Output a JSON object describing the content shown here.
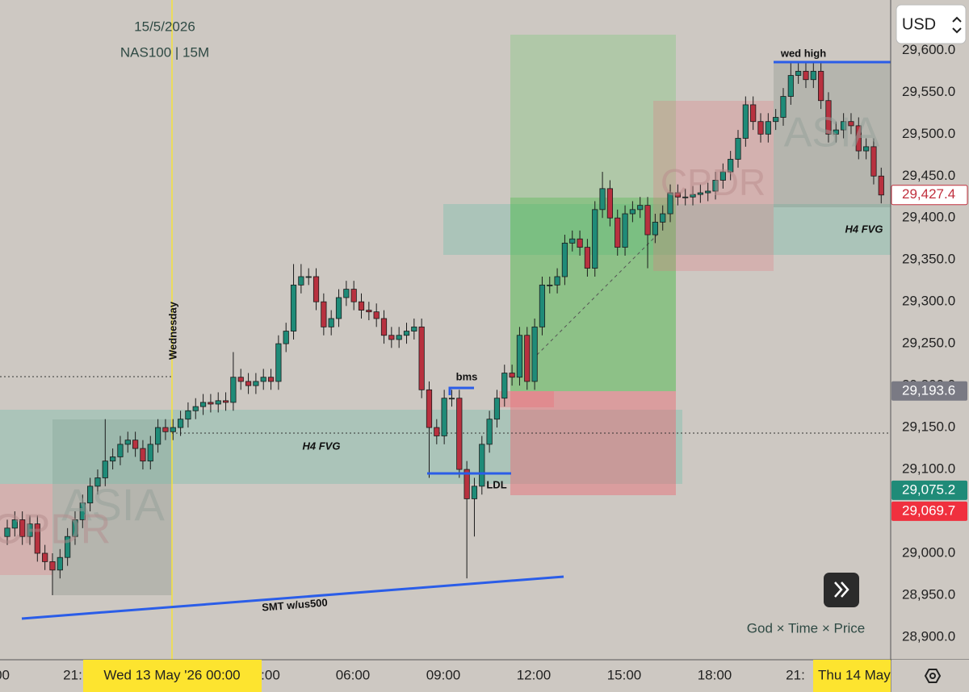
{
  "chart_data": {
    "type": "candlestick",
    "title": "NAS100 | 15M",
    "subtitle": "15/5/2026",
    "categories": [
      "18:30",
      "18:45",
      "19:00",
      "19:15",
      "19:30",
      "19:45",
      "20:00",
      "20:15",
      "20:30",
      "20:45",
      "21:00",
      "21:15",
      "21:30",
      "21:45",
      "22:00",
      "22:15",
      "22:30",
      "22:45",
      "23:00",
      "23:15",
      "23:30",
      "23:45",
      "00:00",
      "00:15",
      "00:30",
      "00:45",
      "01:00",
      "01:15",
      "01:30",
      "01:45",
      "02:00",
      "02:15",
      "02:30",
      "02:45",
      "03:00",
      "03:15",
      "03:30",
      "03:45",
      "04:00",
      "04:15",
      "04:30",
      "04:45",
      "05:00",
      "05:15",
      "05:30",
      "05:45",
      "06:00",
      "06:15",
      "06:30",
      "06:45",
      "07:00",
      "07:15",
      "07:30",
      "07:45",
      "08:00",
      "08:15",
      "08:30",
      "08:45",
      "09:00",
      "09:15",
      "09:30",
      "09:45",
      "10:00",
      "10:15",
      "10:30",
      "10:45",
      "11:00",
      "11:15",
      "11:30",
      "11:45",
      "12:00",
      "12:15",
      "12:30",
      "12:45",
      "13:00",
      "13:15",
      "13:30",
      "13:45",
      "14:00",
      "14:15",
      "14:30",
      "14:45",
      "15:00",
      "15:15",
      "15:30",
      "15:45",
      "16:00",
      "16:15",
      "16:30",
      "16:45",
      "17:00",
      "17:15",
      "17:30",
      "17:45",
      "18:00",
      "18:15",
      "18:30",
      "18:45",
      "19:00",
      "19:15",
      "19:30",
      "19:45",
      "20:00",
      "20:15",
      "20:30",
      "20:45",
      "21:00",
      "21:15",
      "21:30",
      "21:45",
      "22:00",
      "22:15",
      "22:30",
      "22:45",
      "23:00",
      "23:15",
      "23:30"
    ],
    "open": [
      29020,
      29030,
      29040,
      29020,
      29035,
      29000,
      28990,
      28980,
      28995,
      29020,
      29040,
      29060,
      29080,
      29090,
      29110,
      29115,
      29130,
      29135,
      29125,
      29110,
      29130,
      29150,
      29145,
      29150,
      29160,
      29170,
      29175,
      29180,
      29178,
      29182,
      29180,
      29210,
      29205,
      29200,
      29205,
      29210,
      29205,
      29250,
      29265,
      29320,
      29330,
      29330,
      29300,
      29270,
      29280,
      29305,
      29315,
      29300,
      29290,
      29288,
      29280,
      29260,
      29255,
      29260,
      29265,
      29270,
      29195,
      29150,
      29140,
      29185,
      29185,
      29100,
      29065,
      29080,
      29130,
      29160,
      29185,
      29215,
      29210,
      29260,
      29205,
      29270,
      29320,
      29320,
      29330,
      29370,
      29375,
      29365,
      29340,
      29410,
      29435,
      29400,
      29365,
      29405,
      29410,
      29415,
      29380,
      29395,
      29405,
      29430,
      29425,
      29425,
      29428,
      29430,
      29432,
      29445,
      29455,
      29470,
      29495,
      29535,
      29515,
      29500,
      29515,
      29520,
      29545,
      29570,
      29575,
      29565,
      29575,
      29540,
      29500,
      29505,
      29515,
      29510,
      29480,
      29485,
      29450
    ],
    "high": [
      29040,
      29050,
      29050,
      29045,
      29045,
      29010,
      29000,
      29005,
      29030,
      29050,
      29070,
      29090,
      29100,
      29160,
      29125,
      29140,
      29145,
      29145,
      29135,
      29140,
      29160,
      29160,
      29160,
      29170,
      29180,
      29185,
      29190,
      29190,
      29192,
      29192,
      29240,
      29220,
      29215,
      29215,
      29220,
      29220,
      29260,
      29275,
      29345,
      29345,
      29340,
      29340,
      29310,
      29290,
      29315,
      29325,
      29325,
      29310,
      29300,
      29298,
      29290,
      29270,
      29270,
      29275,
      29280,
      29280,
      29205,
      29160,
      29195,
      29195,
      29195,
      29110,
      29090,
      29140,
      29170,
      29195,
      29225,
      29225,
      29270,
      29270,
      29280,
      29330,
      29330,
      29340,
      29380,
      29385,
      29385,
      29375,
      29420,
      29455,
      29445,
      29410,
      29415,
      29420,
      29425,
      29425,
      29405,
      29415,
      29440,
      29440,
      29435,
      29438,
      29440,
      29442,
      29455,
      29465,
      29480,
      29505,
      29545,
      29545,
      29525,
      29525,
      29530,
      29555,
      29585,
      29585,
      29585,
      29585,
      29585,
      29550,
      29515,
      29525,
      29525,
      29520,
      29495,
      29495,
      29460
    ],
    "low": [
      29010,
      29020,
      29010,
      29010,
      28990,
      28980,
      28950,
      28970,
      28985,
      29010,
      29030,
      29050,
      29070,
      29080,
      29100,
      29105,
      29120,
      29115,
      29100,
      29100,
      29120,
      29135,
      29135,
      29140,
      29150,
      29160,
      29165,
      29168,
      29168,
      29170,
      29170,
      29195,
      29190,
      29190,
      29195,
      29195,
      29195,
      29240,
      29255,
      29310,
      29320,
      29290,
      29260,
      29260,
      29270,
      29295,
      29290,
      29280,
      29278,
      29270,
      29250,
      29245,
      29245,
      29250,
      29255,
      29185,
      29090,
      29130,
      29130,
      29175,
      29090,
      28970,
      29020,
      29070,
      29120,
      29150,
      29175,
      29200,
      29200,
      29195,
      29195,
      29260,
      29310,
      29310,
      29320,
      29360,
      29355,
      29330,
      29330,
      29400,
      29390,
      29355,
      29355,
      29395,
      29400,
      29340,
      29370,
      29385,
      29395,
      29415,
      29415,
      29415,
      29418,
      29420,
      29422,
      29435,
      29445,
      29460,
      29485,
      29505,
      29490,
      29490,
      29505,
      29510,
      29535,
      29560,
      29555,
      29555,
      29530,
      29490,
      29490,
      29495,
      29500,
      29470,
      29470,
      29440,
      29417.4
    ],
    "close": [
      29030,
      29040,
      29020,
      29035,
      29000,
      28990,
      28980,
      28995,
      29020,
      29040,
      29060,
      29080,
      29090,
      29110,
      29115,
      29130,
      29135,
      29125,
      29110,
      29130,
      29150,
      29145,
      29150,
      29160,
      29170,
      29175,
      29180,
      29178,
      29182,
      29180,
      29210,
      29205,
      29200,
      29205,
      29210,
      29205,
      29250,
      29265,
      29320,
      29330,
      29330,
      29300,
      29270,
      29280,
      29305,
      29315,
      29300,
      29290,
      29288,
      29280,
      29260,
      29255,
      29260,
      29265,
      29270,
      29195,
      29150,
      29140,
      29185,
      29185,
      29100,
      29065,
      29080,
      29130,
      29160,
      29185,
      29215,
      29210,
      29260,
      29205,
      29270,
      29320,
      29320,
      29330,
      29370,
      29375,
      29365,
      29340,
      29410,
      29435,
      29400,
      29365,
      29405,
      29410,
      29415,
      29380,
      29395,
      29405,
      29430,
      29425,
      29425,
      29428,
      29430,
      29432,
      29445,
      29455,
      29470,
      29495,
      29535,
      29515,
      29500,
      29515,
      29520,
      29545,
      29570,
      29575,
      29565,
      29575,
      29540,
      29500,
      29505,
      29515,
      29510,
      29480,
      29485,
      29450,
      29427.4
    ],
    "up_color": "#1f8b78",
    "down_color": "#b8313f",
    "ylim": [
      28873,
      29660
    ],
    "yticks": [
      {
        "value": 28900,
        "label": "28,900.0"
      },
      {
        "value": 28950,
        "label": "28,950.0"
      },
      {
        "value": 29000,
        "label": "29,000.0"
      },
      {
        "value": 29050,
        "label": "29,050.0"
      },
      {
        "value": 29100,
        "label": "29,100.0"
      },
      {
        "value": 29150,
        "label": "29,150.0"
      },
      {
        "value": 29200,
        "label": "29,200.0"
      },
      {
        "value": 29250,
        "label": "29,250.0"
      },
      {
        "value": 29300,
        "label": "29,300.0"
      },
      {
        "value": 29350,
        "label": "29,350.0"
      },
      {
        "value": 29400,
        "label": "29,400.0"
      },
      {
        "value": 29450,
        "label": "29,450.0"
      },
      {
        "value": 29500,
        "label": "29,500.0"
      },
      {
        "value": 29550,
        "label": "29,550.0"
      },
      {
        "value": 29600,
        "label": "29,600.0"
      }
    ],
    "price_labels": [
      {
        "value": 29427.4,
        "label": "29,427.4",
        "color": "#ffffff",
        "text_color": "#c0303e"
      },
      {
        "value": 29193.6,
        "label": "29,193.6",
        "color": "#7a7a84",
        "text_color": "#ffffff"
      },
      {
        "value": 29075.2,
        "label": "29,075.2",
        "color": "#1f8b78",
        "text_color": "#ffffff"
      },
      {
        "value": 29069.7,
        "label": "29,069.7",
        "color": "#f0303e",
        "text_color": "#ffffff"
      }
    ],
    "xtick_labels": [
      "00",
      "21:",
      ":00",
      "06:00",
      "09:00",
      "12:00",
      "15:00",
      "18:00",
      "21:"
    ],
    "date_labels": [
      "Wed 13 May '26   00:00",
      "Thu 14 May"
    ],
    "annotations": [
      "Wednesday",
      "H4 FVG",
      "bms",
      "LDL",
      "SMT w/us500",
      "wed high",
      "H4 FVG",
      "ASIA",
      "ASIA",
      "CPDR",
      "CPDR",
      "God × Time × Price"
    ],
    "currency": "USD"
  }
}
